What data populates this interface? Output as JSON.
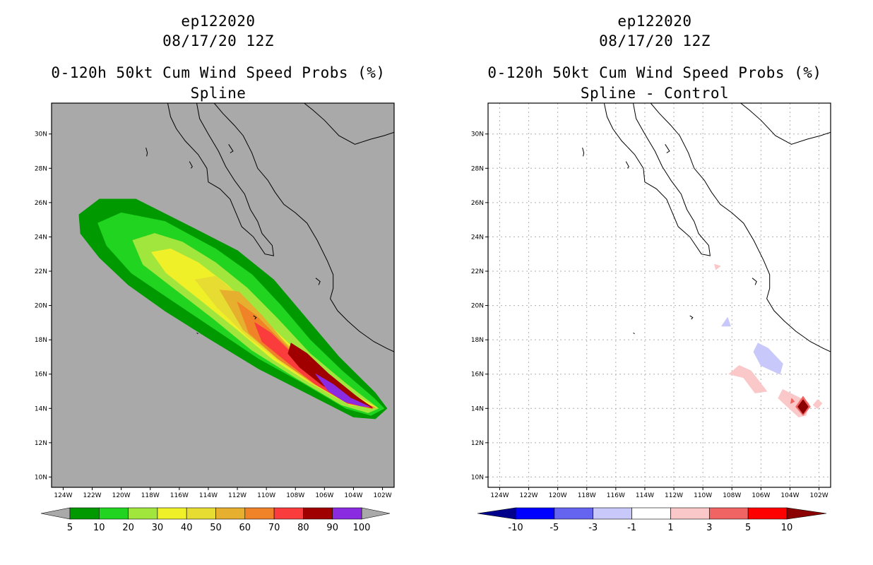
{
  "chart_data": [
    {
      "type": "heatmap",
      "storm_id": "ep122020",
      "init_time": "08/17/20 12Z",
      "title": "0-120h 50kt Cum Wind Speed Probs (%)",
      "subtitle": "Spline",
      "x_ticks": [
        "124W",
        "122W",
        "120W",
        "118W",
        "116W",
        "114W",
        "112W",
        "110W",
        "108W",
        "106W",
        "104W",
        "102W"
      ],
      "y_ticks": [
        "10N",
        "12N",
        "14N",
        "16N",
        "18N",
        "20N",
        "22N",
        "24N",
        "26N",
        "28N",
        "30N"
      ],
      "xlim": [
        -124.8,
        -101.2
      ],
      "ylim": [
        9.4,
        31.8
      ],
      "background_color": "#a9a9a9",
      "colorbar_labels": [
        "5",
        "10",
        "20",
        "30",
        "40",
        "50",
        "60",
        "70",
        "80",
        "90",
        "100"
      ],
      "colorbar_colors": [
        "#009a00",
        "#20d420",
        "#a0e63c",
        "#f0f028",
        "#e6dc32",
        "#e6af2d",
        "#f08228",
        "#fa3c3c",
        "#a00000",
        "#8a2be2"
      ],
      "band_polygons": [
        {
          "level": 5,
          "lonlat": [
            [
              -122.9,
              25.3
            ],
            [
              -121.5,
              26.2
            ],
            [
              -119,
              26.2
            ],
            [
              -115,
              24.5
            ],
            [
              -112,
              23.2
            ],
            [
              -109.5,
              21.5
            ],
            [
              -107.5,
              19.5
            ],
            [
              -105,
              17
            ],
            [
              -102.5,
              14.9
            ],
            [
              -101.7,
              14.0
            ],
            [
              -102.5,
              13.4
            ],
            [
              -104,
              13.5
            ],
            [
              -107,
              14.8
            ],
            [
              -110.5,
              16.3
            ],
            [
              -114,
              18.1
            ],
            [
              -117,
              19.7
            ],
            [
              -119.5,
              21.2
            ],
            [
              -121.5,
              22.8
            ],
            [
              -122.8,
              24.2
            ]
          ]
        },
        {
          "level": 10,
          "lonlat": [
            [
              -121.6,
              24.8
            ],
            [
              -120,
              25.4
            ],
            [
              -117,
              24.9
            ],
            [
              -113.5,
              23.3
            ],
            [
              -111,
              21.8
            ],
            [
              -109,
              20.0
            ],
            [
              -107,
              18.0
            ],
            [
              -104.8,
              16.2
            ],
            [
              -102.6,
              14.6
            ],
            [
              -101.9,
              14.0
            ],
            [
              -102.8,
              13.6
            ],
            [
              -104.5,
              14.0
            ],
            [
              -107.5,
              15.5
            ],
            [
              -110.5,
              16.9
            ],
            [
              -113.5,
              18.6
            ],
            [
              -116.5,
              20.3
            ],
            [
              -119.3,
              21.9
            ],
            [
              -121,
              23.5
            ]
          ]
        },
        {
          "level": 20,
          "lonlat": [
            [
              -119.2,
              23.8
            ],
            [
              -117.7,
              24.2
            ],
            [
              -115.8,
              23.7
            ],
            [
              -113.5,
              22.5
            ],
            [
              -111.3,
              21.0
            ],
            [
              -109.2,
              19.2
            ],
            [
              -107,
              17.2
            ],
            [
              -104.6,
              15.5
            ],
            [
              -102.3,
              14.0
            ],
            [
              -103,
              13.75
            ],
            [
              -104.8,
              14.2
            ],
            [
              -108,
              15.8
            ],
            [
              -111,
              17.4
            ],
            [
              -113.6,
              19.2
            ],
            [
              -116.2,
              20.9
            ],
            [
              -118.5,
              22.4
            ]
          ]
        },
        {
          "level": 30,
          "lonlat": [
            [
              -117.9,
              23.1
            ],
            [
              -116.6,
              23.3
            ],
            [
              -114.7,
              22.5
            ],
            [
              -112.7,
              21.2
            ],
            [
              -110.6,
              19.5
            ],
            [
              -108.5,
              17.8
            ],
            [
              -106.2,
              16.0
            ],
            [
              -104,
              14.8
            ],
            [
              -102.4,
              14.05
            ],
            [
              -104.2,
              14.2
            ],
            [
              -107,
              15.5
            ],
            [
              -109.6,
              16.9
            ],
            [
              -112,
              18.6
            ],
            [
              -114.5,
              20.3
            ],
            [
              -116.9,
              21.9
            ]
          ]
        },
        {
          "level": 40,
          "lonlat": [
            [
              -114.9,
              21.5
            ],
            [
              -113.5,
              21.7
            ],
            [
              -111.9,
              20.6
            ],
            [
              -110.2,
              19.1
            ],
            [
              -108.4,
              17.6
            ],
            [
              -106.2,
              15.9
            ],
            [
              -103.6,
              14.5
            ],
            [
              -102.5,
              14.05
            ],
            [
              -104.1,
              14.25
            ],
            [
              -106.6,
              15.3
            ],
            [
              -109,
              16.7
            ],
            [
              -111.3,
              18.2
            ],
            [
              -113.4,
              19.9
            ]
          ]
        },
        {
          "level": 50,
          "lonlat": [
            [
              -113.2,
              20.9
            ],
            [
              -111.9,
              20.8
            ],
            [
              -110.3,
              19.4
            ],
            [
              -108.7,
              17.8
            ],
            [
              -106.6,
              16.1
            ],
            [
              -104,
              14.6
            ],
            [
              -102.5,
              14.05
            ],
            [
              -104.2,
              14.25
            ],
            [
              -106.8,
              15.5
            ],
            [
              -109.2,
              16.9
            ],
            [
              -111.6,
              18.6
            ]
          ]
        },
        {
          "level": 60,
          "lonlat": [
            [
              -112,
              20.2
            ],
            [
              -110.7,
              19.4
            ],
            [
              -109.2,
              18.1
            ],
            [
              -107.2,
              16.4
            ],
            [
              -104.4,
              14.7
            ],
            [
              -102.6,
              14.05
            ],
            [
              -104.4,
              14.3
            ],
            [
              -106.8,
              15.5
            ],
            [
              -109.2,
              16.9
            ],
            [
              -111.2,
              18.4
            ]
          ]
        },
        {
          "level": 70,
          "lonlat": [
            [
              -110.8,
              19.0
            ],
            [
              -109.7,
              18.4
            ],
            [
              -108,
              17.0
            ],
            [
              -105.6,
              15.3
            ],
            [
              -103.2,
              14.2
            ],
            [
              -102.7,
              14.0
            ],
            [
              -104.4,
              14.3
            ],
            [
              -106.6,
              15.4
            ],
            [
              -108.7,
              16.8
            ],
            [
              -110.3,
              17.9
            ]
          ]
        },
        {
          "level": 80,
          "lonlat": [
            [
              -108.3,
              17.8
            ],
            [
              -107.2,
              17.2
            ],
            [
              -105.7,
              16.0
            ],
            [
              -103.8,
              14.7
            ],
            [
              -102.7,
              14.05
            ],
            [
              -104.3,
              14.4
            ],
            [
              -106.2,
              15.4
            ],
            [
              -107.7,
              16.4
            ],
            [
              -108.5,
              17.2
            ]
          ]
        },
        {
          "level": 90,
          "lonlat": [
            [
              -106.6,
              16.0
            ],
            [
              -105.4,
              15.4
            ],
            [
              -104.2,
              14.6
            ],
            [
              -102.9,
              14.1
            ],
            [
              -103.5,
              14.15
            ],
            [
              -104.6,
              14.4
            ],
            [
              -105.7,
              15.0
            ]
          ]
        }
      ]
    },
    {
      "type": "heatmap",
      "storm_id": "ep122020",
      "init_time": "08/17/20 12Z",
      "title": "0-120h 50kt Cum Wind Speed Probs (%)",
      "subtitle": "Spline - Control",
      "x_ticks": [
        "124W",
        "122W",
        "120W",
        "118W",
        "116W",
        "114W",
        "112W",
        "110W",
        "108W",
        "106W",
        "104W",
        "102W"
      ],
      "y_ticks": [
        "10N",
        "12N",
        "14N",
        "16N",
        "18N",
        "20N",
        "22N",
        "24N",
        "26N",
        "28N",
        "30N"
      ],
      "xlim": [
        -124.8,
        -101.2
      ],
      "ylim": [
        9.4,
        31.8
      ],
      "grid": true,
      "colorbar_labels": [
        "-10",
        "-5",
        "-3",
        "-1",
        "1",
        "3",
        "5",
        "10"
      ],
      "colorbar_colors": [
        "#00008b",
        "#0000ff",
        "#6464f0",
        "#c8c8fa",
        "#ffffff",
        "#fac8c8",
        "#f06464",
        "#ff0000",
        "#8b0000"
      ],
      "anomalies": [
        {
          "level": -1,
          "color": "#c8c8fa",
          "lonlat": [
            [
              -108.3,
              19.3
            ],
            [
              -108.7,
              18.8
            ],
            [
              -108.1,
              18.8
            ]
          ]
        },
        {
          "level": -1,
          "color": "#c8c8fa",
          "lonlat": [
            [
              -106.2,
              17.8
            ],
            [
              -105.5,
              17.5
            ],
            [
              -104.5,
              16.6
            ],
            [
              -104.7,
              16.0
            ],
            [
              -106.0,
              16.5
            ],
            [
              -106.5,
              17.3
            ]
          ]
        },
        {
          "level": 1,
          "color": "#fac8c8",
          "lonlat": [
            [
              -107.5,
              16.5
            ],
            [
              -106.7,
              16.2
            ],
            [
              -105.6,
              15.0
            ],
            [
              -106.4,
              14.9
            ],
            [
              -107.2,
              15.8
            ],
            [
              -108.2,
              16.0
            ]
          ]
        },
        {
          "level": 1,
          "color": "#fac8c8",
          "lonlat": [
            [
              -104.5,
              15.1
            ],
            [
              -103.3,
              14.6
            ],
            [
              -102.7,
              14.3
            ],
            [
              -102.9,
              13.6
            ],
            [
              -103.4,
              13.5
            ],
            [
              -104.3,
              14.2
            ],
            [
              -104.8,
              14.6
            ]
          ]
        },
        {
          "level": 1,
          "color": "#fac8c8",
          "lonlat": [
            [
              -102.1,
              14.5
            ],
            [
              -101.8,
              14.3
            ],
            [
              -102.1,
              14.0
            ],
            [
              -102.4,
              14.2
            ]
          ]
        },
        {
          "level": 1,
          "color": "#fac8c8",
          "lonlat": [
            [
              -109.2,
              22.4
            ],
            [
              -108.8,
              22.3
            ],
            [
              -109.1,
              22.1
            ]
          ]
        },
        {
          "level": 3,
          "color": "#f06464",
          "lonlat": [
            [
              -103.1,
              14.7
            ],
            [
              -102.6,
              14.1
            ],
            [
              -103.1,
              13.6
            ],
            [
              -103.6,
              14.1
            ]
          ]
        },
        {
          "level": 10,
          "color": "#8b0000",
          "lonlat": [
            [
              -103.1,
              14.5
            ],
            [
              -102.75,
              14.1
            ],
            [
              -103.1,
              13.7
            ],
            [
              -103.45,
              14.1
            ]
          ]
        },
        {
          "level": 3,
          "color": "#f06464",
          "lonlat": [
            [
              -103.88,
              14.58
            ],
            [
              -103.7,
              14.4
            ],
            [
              -103.95,
              14.3
            ]
          ]
        }
      ]
    }
  ]
}
